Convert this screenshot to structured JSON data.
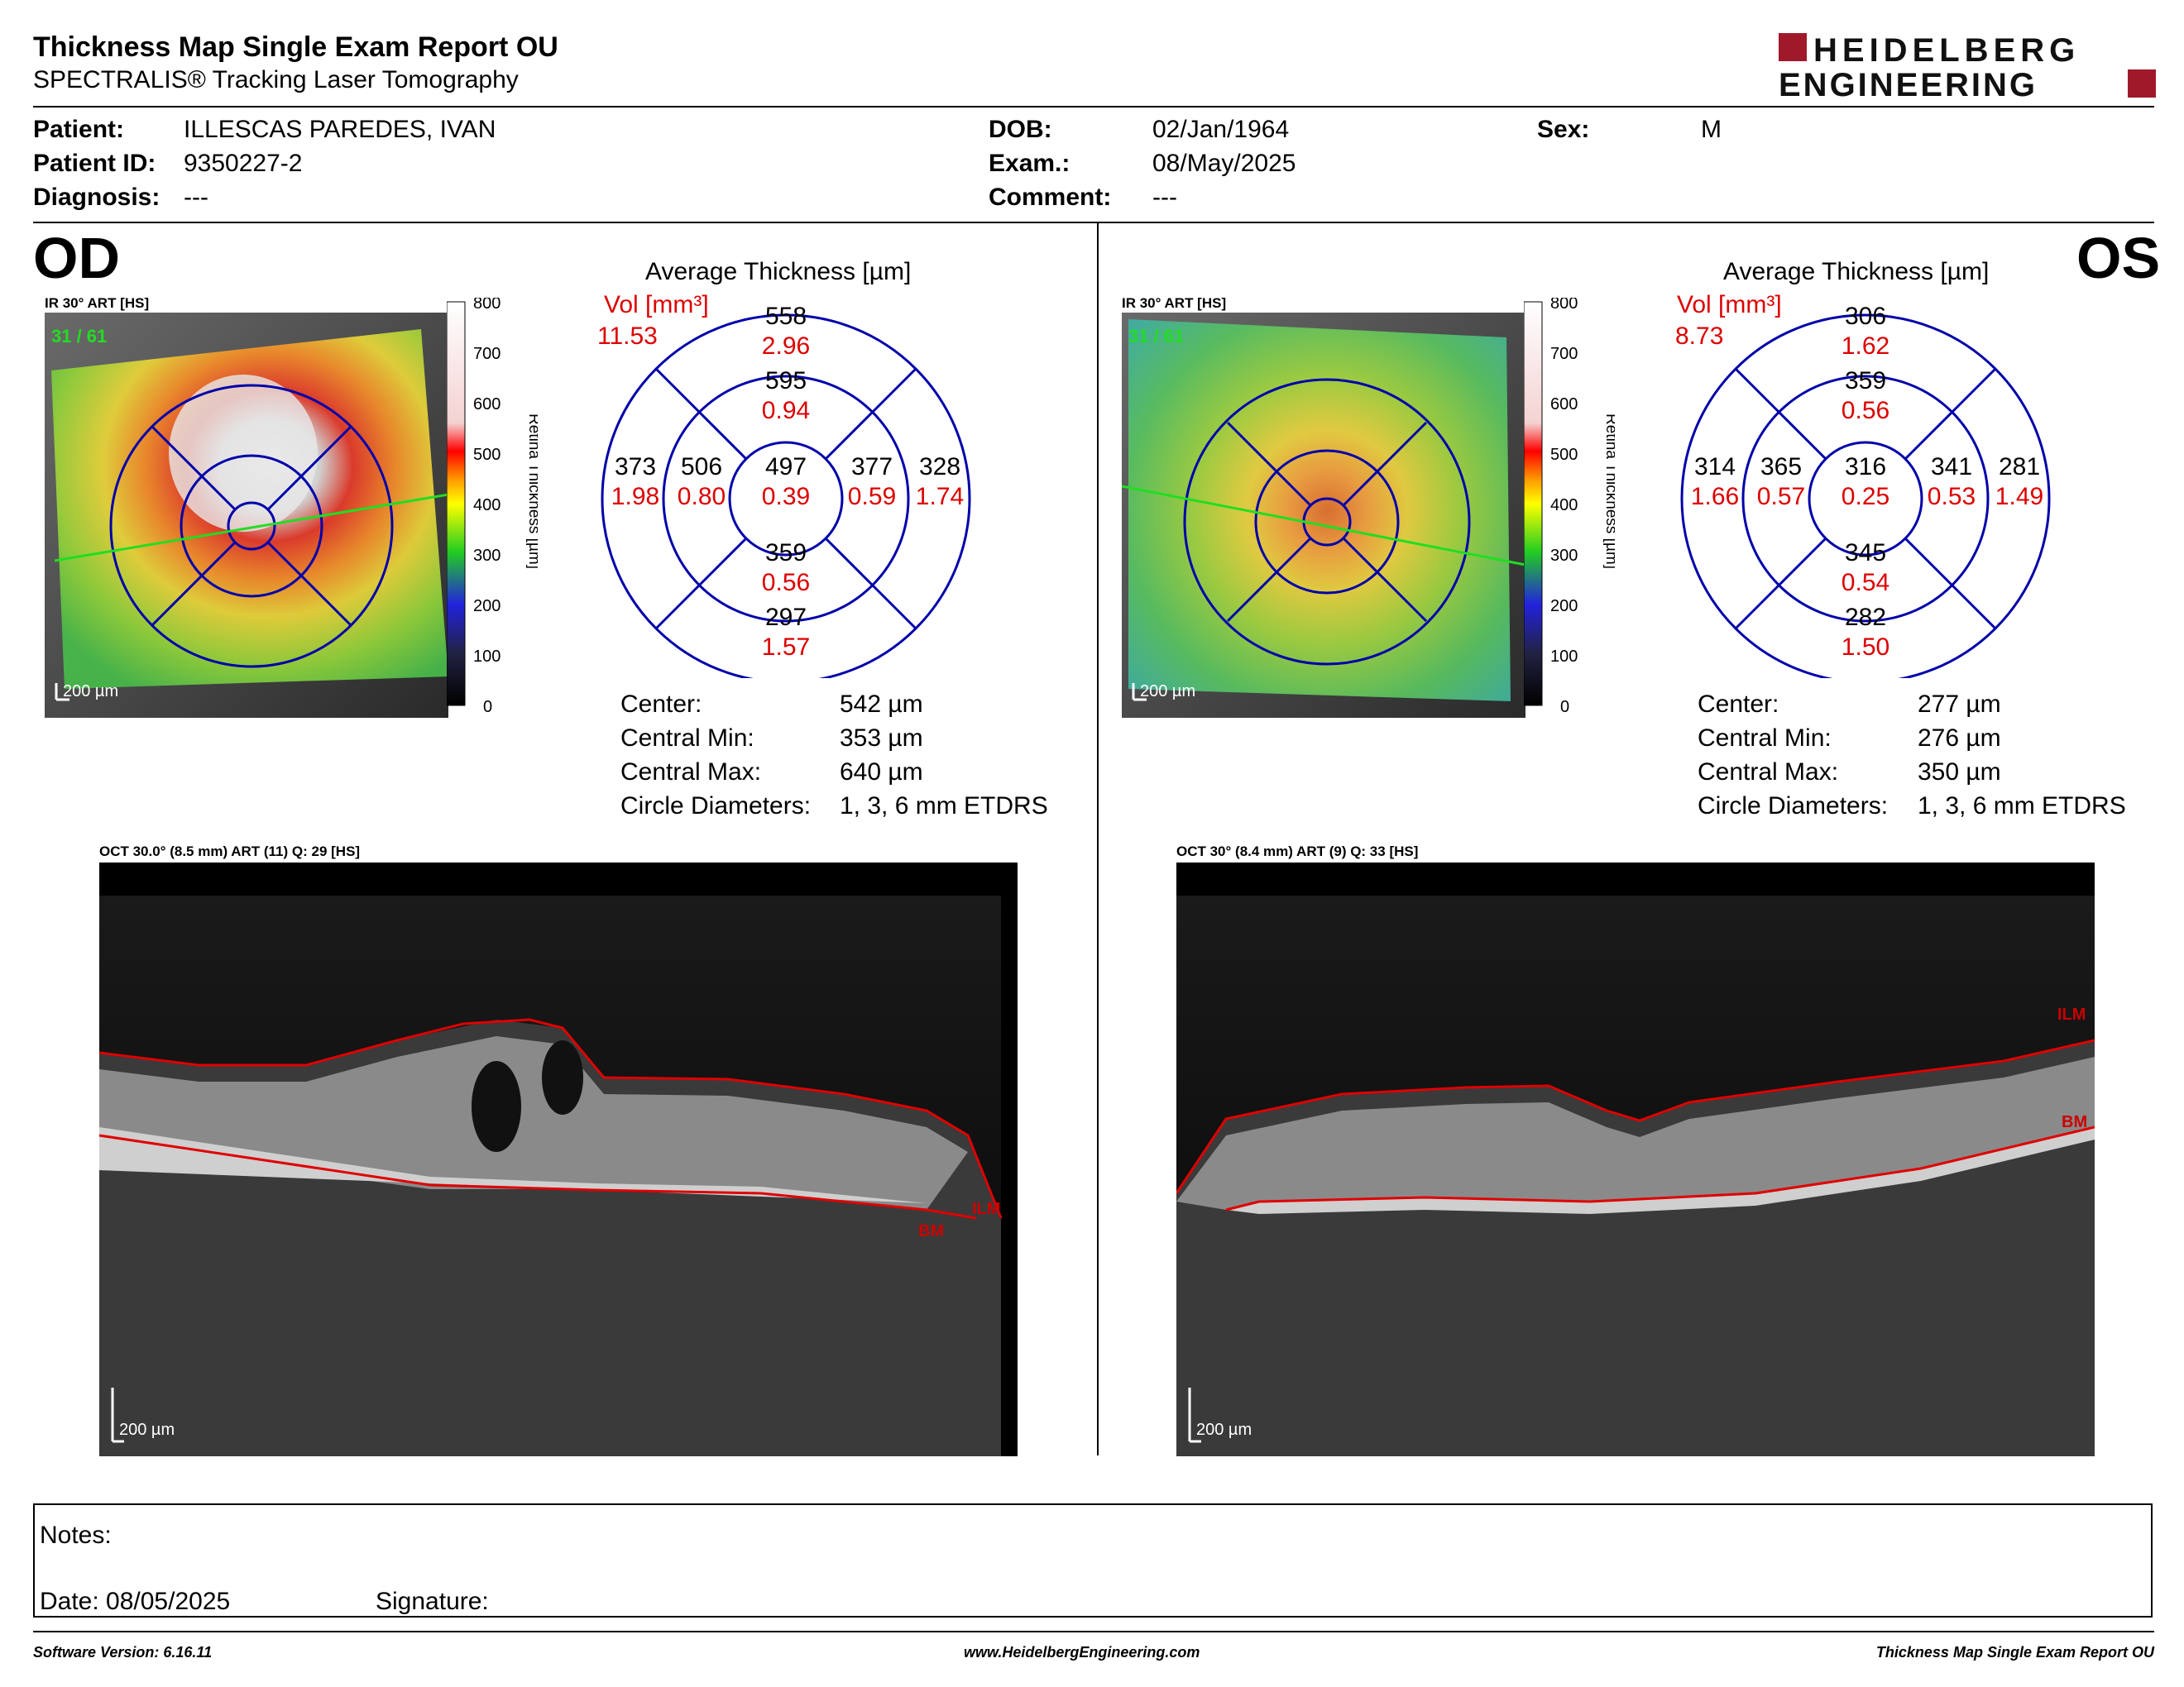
{
  "header": {
    "title": "Thickness Map Single Exam Report OU",
    "subtitle": "SPECTRALIS® Tracking Laser Tomography",
    "logo_line1": "HEIDELBERG",
    "logo_line2": "ENGINEERING"
  },
  "patient": {
    "patient_label": "Patient:",
    "patient_value": "ILLESCAS PAREDES, IVAN",
    "id_label": "Patient ID:",
    "id_value": "9350227-2",
    "diagnosis_label": "Diagnosis:",
    "diagnosis_value": "---",
    "dob_label": "DOB:",
    "dob_value": "02/Jan/1964",
    "exam_label": "Exam.:",
    "exam_value": "08/May/2025",
    "comment_label": "Comment:",
    "comment_value": "---",
    "sex_label": "Sex:",
    "sex_value": "M"
  },
  "colorbar": {
    "ticks": [
      "800",
      "700",
      "600",
      "500",
      "400",
      "300",
      "200",
      "100",
      "0"
    ],
    "label": "Retina Thickness [µm]"
  },
  "od": {
    "eye_label": "OD",
    "ir_label": "IR 30° ART [HS]",
    "frame_count": "31 / 61",
    "scale_bar": "200 µm",
    "avg_title": "Average Thickness [µm]",
    "vol_label": "Vol [mm³]",
    "vol_total": "11.53",
    "sectors": {
      "center": {
        "thickness": "497",
        "volume": "0.39"
      },
      "inner_superior": {
        "thickness": "595",
        "volume": "0.94"
      },
      "inner_inferior": {
        "thickness": "359",
        "volume": "0.56"
      },
      "inner_nasal": {
        "thickness": "506",
        "volume": "0.80"
      },
      "inner_temporal": {
        "thickness": "377",
        "volume": "0.59"
      },
      "outer_superior": {
        "thickness": "558",
        "volume": "2.96"
      },
      "outer_inferior": {
        "thickness": "297",
        "volume": "1.57"
      },
      "outer_nasal": {
        "thickness": "373",
        "volume": "1.98"
      },
      "outer_temporal": {
        "thickness": "328",
        "volume": "1.74"
      }
    },
    "stats": {
      "center_label": "Center:",
      "center_value": "542 µm",
      "min_label": "Central Min:",
      "min_value": "353 µm",
      "max_label": "Central Max:",
      "max_value": "640 µm",
      "diam_label": "Circle Diameters:",
      "diam_value": "1, 3, 6 mm ETDRS"
    },
    "oct_label": "OCT 30.0° (8.5 mm) ART (11) Q: 29 [HS]",
    "oct_scale": "200 µm",
    "ilm": "ILM",
    "bm": "BM"
  },
  "os": {
    "eye_label": "OS",
    "ir_label": "IR 30° ART [HS]",
    "frame_count": "31 / 61",
    "scale_bar": "200 µm",
    "avg_title": "Average Thickness [µm]",
    "vol_label": "Vol [mm³]",
    "vol_total": "8.73",
    "sectors": {
      "center": {
        "thickness": "316",
        "volume": "0.25"
      },
      "inner_superior": {
        "thickness": "359",
        "volume": "0.56"
      },
      "inner_inferior": {
        "thickness": "345",
        "volume": "0.54"
      },
      "inner_nasal": {
        "thickness": "341",
        "volume": "0.53"
      },
      "inner_temporal": {
        "thickness": "365",
        "volume": "0.57"
      },
      "outer_superior": {
        "thickness": "306",
        "volume": "1.62"
      },
      "outer_inferior": {
        "thickness": "282",
        "volume": "1.50"
      },
      "outer_nasal": {
        "thickness": "281",
        "volume": "1.49"
      },
      "outer_temporal": {
        "thickness": "314",
        "volume": "1.66"
      }
    },
    "stats": {
      "center_label": "Center:",
      "center_value": "277 µm",
      "min_label": "Central Min:",
      "min_value": "276 µm",
      "max_label": "Central Max:",
      "max_value": "350 µm",
      "diam_label": "Circle Diameters:",
      "diam_value": "1, 3, 6 mm ETDRS"
    },
    "oct_label": "OCT 30° (8.4 mm) ART (9) Q: 33 [HS]",
    "oct_scale": "200 µm",
    "ilm": "ILM",
    "bm": "BM"
  },
  "notes": {
    "notes_label": "Notes:",
    "date_label": "Date: 08/05/2025",
    "signature_label": "Signature:"
  },
  "footer": {
    "software": "Software Version: 6.16.11",
    "website": "www.HeidelbergEngineering.com",
    "report_name": "Thickness Map Single Exam Report OU"
  },
  "colors": {
    "sector_lines": "#0000aa",
    "volume_text": "#dd0000",
    "overlay_label": "#22dd22",
    "logo_accent": "#a0192a"
  }
}
